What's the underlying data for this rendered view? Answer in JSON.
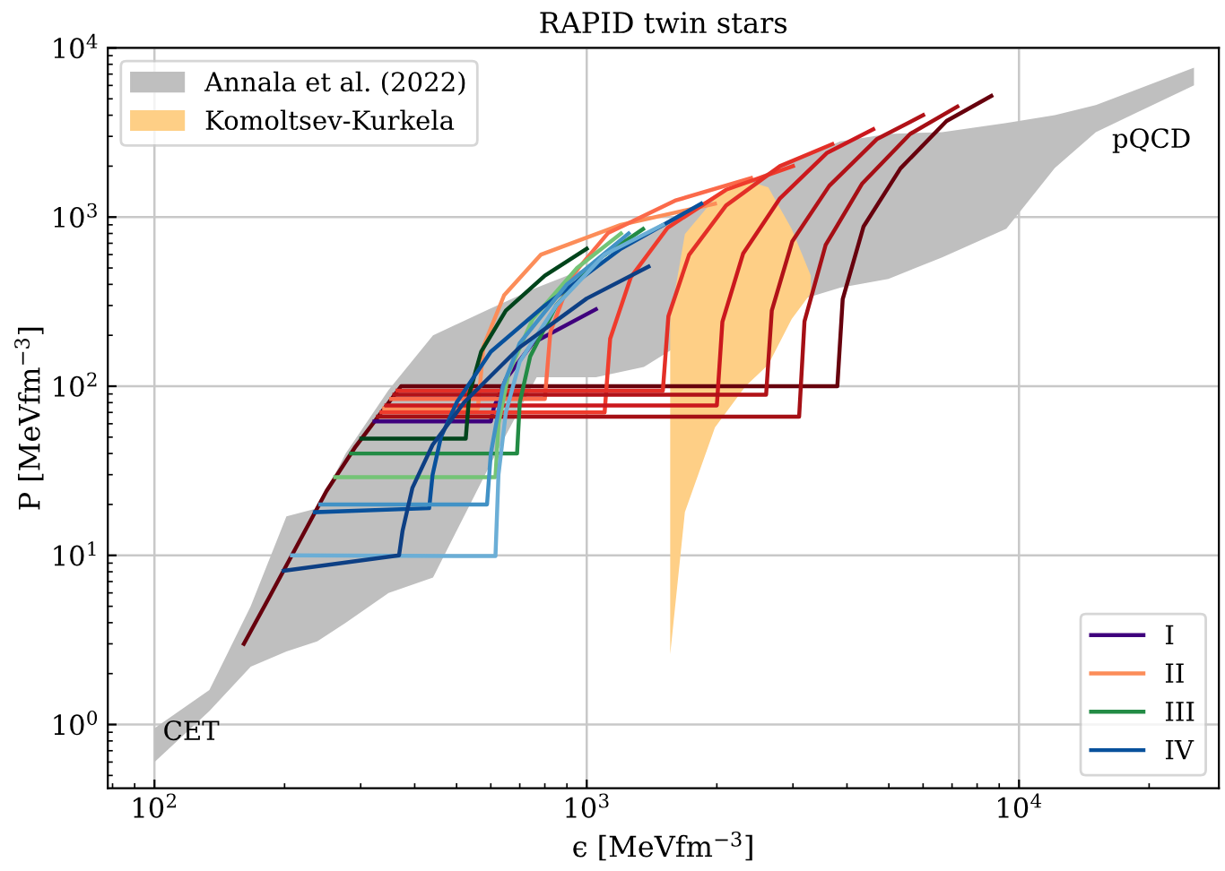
{
  "chart_data": {
    "type": "line",
    "title": "RAPID twin stars",
    "xlabel": "ϵ [MeVfm$^{−3}$]",
    "ylabel": "P [MeVfm$^{−3}$]",
    "log": "xy",
    "grid": true,
    "legend": [
      "top left",
      "bottom right"
    ],
    "line_style": "solid",
    "marker": "none",
    "xlim": [
      78,
      29000
    ],
    "ylim": [
      0.42,
      10000
    ],
    "xticks": [
      {
        "value": 100,
        "label": "10$^{2}$"
      },
      {
        "value": 1000,
        "label": "10$^{3}$"
      },
      {
        "value": 10000,
        "label": "10$^{4}$"
      }
    ],
    "yticks": [
      {
        "value": 1,
        "label": "10$^{0}$"
      },
      {
        "value": 10,
        "label": "10$^{1}$"
      },
      {
        "value": 100,
        "label": "10$^{2}$"
      },
      {
        "value": 1000,
        "label": "10$^{3}$"
      },
      {
        "value": 10000,
        "label": "10$^{4}$"
      }
    ],
    "annotations": [
      "CET",
      "pQCD"
    ],
    "series": [
      {
        "type": "area",
        "name": "Annala et al. (2022)",
        "color": "#bfbfbf",
        "x": [
          100,
          134,
          167,
          202,
          238,
          277,
          348,
          441,
          593,
          766,
          1050,
          1356,
          1687,
          2820,
          3860,
          4990,
          6640,
          9350,
          12100,
          15060,
          25400
        ],
        "values": [
          null,
          null,
          null,
          null,
          null,
          null,
          null,
          null,
          null,
          null,
          null,
          null,
          null,
          null,
          null,
          null,
          null,
          null,
          null,
          null,
          null
        ],
        "lower": [
          0.6,
          1.2,
          2.2,
          2.7,
          3.1,
          4.0,
          6,
          7.4,
          33,
          113,
          113,
          130,
          184,
          300,
          382,
          431,
          578,
          853,
          1950,
          3180,
          6000
        ],
        "upper": [
          0.95,
          1.6,
          5,
          17,
          19,
          40,
          95,
          200,
          285,
          382,
          525,
          794,
          1100,
          2000,
          2800,
          3100,
          3180,
          3600,
          4000,
          4590,
          7650
        ]
      },
      {
        "type": "area",
        "name": "Komoltsev-Kurkela",
        "color": "#fecf86",
        "x": [
          1560,
          1687,
          1980,
          2330,
          2630,
          2980,
          3300
        ],
        "values": [
          null,
          null,
          null,
          null,
          null,
          null,
          null
        ],
        "lower": [
          2.6,
          18,
          57,
          100,
          134,
          250,
          355
        ],
        "upper": [
          250,
          794,
          1290,
          1650,
          1500,
          850,
          450
        ]
      },
      {
        "color": "#67000d",
        "x": [
          161,
          184,
          250,
          292,
          372,
          3800,
          3910,
          4370,
          5320,
          6800,
          8630
        ],
        "values": [
          3,
          5.6,
          24,
          44,
          100,
          100,
          327,
          880,
          1940,
          3700,
          5200
        ]
      },
      {
        "name": "I",
        "color": "#3f007d",
        "x": [
          323,
          600,
          610,
          650,
          750,
          1050
        ],
        "values": [
          62,
          62,
          75,
          110,
          180,
          285
        ]
      },
      {
        "name": "II",
        "color": "#fc8d59",
        "x": [
          340,
          560,
          577,
          644,
          784,
          1200,
          1980
        ],
        "values": [
          74,
          74,
          172,
          345,
          600,
          900,
          1200
        ]
      },
      {
        "color": "#fb6a4a",
        "x": [
          353,
          800,
          824,
          920,
          1120,
          1600,
          2400
        ],
        "values": [
          84,
          84,
          209,
          442,
          804,
          1250,
          1700
        ]
      },
      {
        "color": "#ef3b2c",
        "x": [
          335,
          1100,
          1133,
          1265,
          1540,
          2100,
          3000
        ],
        "values": [
          70,
          70,
          191,
          441,
          866,
          1450,
          2000
        ]
      },
      {
        "color": "#e32f27",
        "x": [
          365,
          1500,
          1545,
          1725,
          2100,
          2800,
          3700
        ],
        "values": [
          94,
          94,
          259,
          598,
          1170,
          2000,
          2700
        ]
      },
      {
        "color": "#cb181d",
        "x": [
          344,
          2000,
          2060,
          2300,
          2800,
          3600,
          4600
        ],
        "values": [
          77,
          77,
          240,
          608,
          1290,
          2400,
          3300
        ]
      },
      {
        "color": "#b11218",
        "x": [
          359,
          2600,
          2680,
          2990,
          3640,
          4700,
          6000
        ],
        "values": [
          89,
          89,
          280,
          720,
          1530,
          2900,
          4000
        ]
      },
      {
        "color": "#a50f15",
        "x": [
          329,
          3100,
          3190,
          3570,
          4340,
          5600,
          7200
        ],
        "values": [
          66,
          66,
          242,
          683,
          1580,
          3100,
          4500
        ]
      },
      {
        "name": "III",
        "color": "#238b45",
        "x": [
          285,
          690,
          700,
          740,
          850,
          1050,
          1350
        ],
        "values": [
          40,
          40,
          80,
          150,
          300,
          550,
          850
        ]
      },
      {
        "color": "#74c476",
        "x": [
          262,
          615,
          625,
          660,
          750,
          950,
          1200
        ],
        "values": [
          29,
          29,
          60,
          120,
          250,
          500,
          800
        ]
      },
      {
        "color": "#00441b",
        "x": [
          301,
          525,
          535,
          570,
          650,
          800,
          1000
        ],
        "values": [
          49,
          49,
          90,
          160,
          280,
          450,
          650
        ]
      },
      {
        "name": "IV",
        "color": "#08519c",
        "x": [
          235,
          432,
          440,
          460,
          500,
          600,
          800,
          1200,
          1840
        ],
        "values": [
          18,
          19,
          30,
          50,
          80,
          160,
          300,
          650,
          1200
        ]
      },
      {
        "color": "#4292c6",
        "x": [
          242,
          588,
          600,
          640,
          700,
          900,
          1250
        ],
        "values": [
          20,
          20,
          40,
          100,
          180,
          400,
          800
        ]
      },
      {
        "color": "#6baed6",
        "x": [
          208,
          615,
          625,
          650,
          700,
          850,
          1100,
          1500
        ],
        "values": [
          10,
          9.9,
          30,
          70,
          140,
          300,
          600,
          900
        ]
      },
      {
        "color": "#0d3f84",
        "x": [
          199,
          368,
          375,
          395,
          440,
          520,
          700,
          1000,
          1390
        ],
        "values": [
          8.1,
          10,
          14,
          25,
          45,
          80,
          170,
          330,
          510
        ]
      }
    ]
  }
}
